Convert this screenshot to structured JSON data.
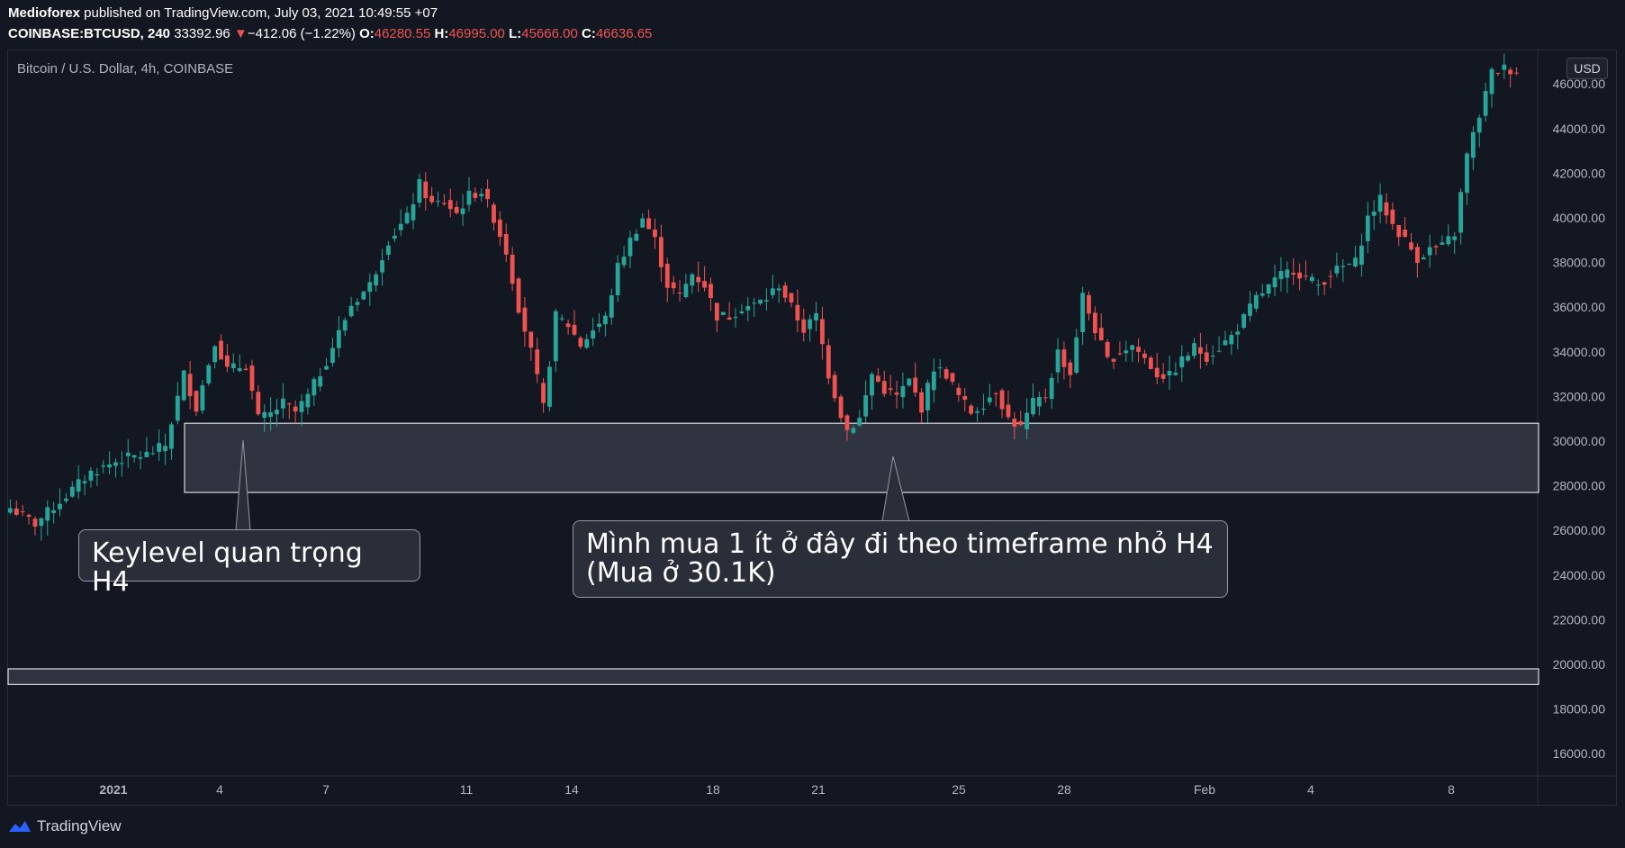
{
  "header": {
    "author": "Medioforex",
    "published": " published on TradingView.com, July 03, 2021 10:49:55 +07"
  },
  "quote": {
    "symbol": "COINBASE:BTCUSD, 240",
    "last": "33392.96",
    "arrow": "▼",
    "change": "−412.06 (−1.22%)",
    "o_label": "O:",
    "o": "46280.55",
    "h_label": "H:",
    "h": "46995.00",
    "l_label": "L:",
    "l": "45666.00",
    "c_label": "C:",
    "c": "46636.65"
  },
  "pane_title": "Bitcoin / U.S. Dollar, 4h, COINBASE",
  "currency": "USD",
  "callouts": {
    "keylevel": "Keylevel quan trọng H4",
    "buy_line1": "Mình mua 1 ít ở đây đi theo timeframe nhỏ H4",
    "buy_line2": "(Mua ở 30.1K)"
  },
  "branding": "TradingView",
  "colors": {
    "background": "#131722",
    "up": "#26a69a",
    "down": "#ef5350",
    "zone_fill": "#363a45",
    "zone_border": "#ffffff"
  },
  "chart_data": {
    "type": "candlestick",
    "title": "Bitcoin / U.S. Dollar, 4h, COINBASE",
    "ylim": [
      15000,
      47500
    ],
    "y_ticks": [
      16000,
      18000,
      20000,
      22000,
      24000,
      26000,
      28000,
      30000,
      32000,
      34000,
      36000,
      38000,
      40000,
      42000,
      44000,
      46000
    ],
    "x_ticks": [
      "2021",
      "4",
      "7",
      "11",
      "14",
      "18",
      "21",
      "25",
      "28",
      "Feb",
      "4",
      "8"
    ],
    "zones": [
      {
        "name": "key-zone",
        "y_top": 30800,
        "y_bottom": 27700
      },
      {
        "name": "lower-zone",
        "y_top": 19800,
        "y_bottom": 19100
      }
    ],
    "close_path": [
      [
        0,
        27000
      ],
      [
        4,
        26300
      ],
      [
        8,
        27300
      ],
      [
        13,
        28600
      ],
      [
        18,
        29200
      ],
      [
        22,
        29400
      ],
      [
        25,
        29800
      ],
      [
        28,
        33000
      ],
      [
        30,
        31500
      ],
      [
        33,
        34500
      ],
      [
        35,
        33200
      ],
      [
        38,
        33400
      ],
      [
        40,
        31000
      ],
      [
        42,
        31200
      ],
      [
        44,
        31700
      ],
      [
        46,
        31300
      ],
      [
        48,
        32000
      ],
      [
        51,
        33600
      ],
      [
        55,
        36100
      ],
      [
        58,
        37000
      ],
      [
        61,
        39000
      ],
      [
        64,
        40000
      ],
      [
        66,
        41500
      ],
      [
        68,
        40600
      ],
      [
        70,
        40700
      ],
      [
        72,
        40200
      ],
      [
        74,
        41000
      ],
      [
        76,
        41200
      ],
      [
        78,
        40000
      ],
      [
        80,
        38500
      ],
      [
        82,
        36000
      ],
      [
        84,
        34000
      ],
      [
        86,
        31500
      ],
      [
        88,
        35600
      ],
      [
        90,
        35200
      ],
      [
        92,
        34300
      ],
      [
        94,
        35000
      ],
      [
        96,
        35500
      ],
      [
        98,
        37800
      ],
      [
        100,
        39000
      ],
      [
        102,
        40000
      ],
      [
        104,
        39000
      ],
      [
        106,
        37000
      ],
      [
        108,
        36500
      ],
      [
        110,
        37500
      ],
      [
        112,
        37000
      ],
      [
        114,
        35600
      ],
      [
        116,
        35600
      ],
      [
        118,
        36000
      ],
      [
        120,
        36100
      ],
      [
        122,
        36400
      ],
      [
        124,
        37000
      ],
      [
        126,
        36000
      ],
      [
        128,
        35000
      ],
      [
        130,
        35600
      ],
      [
        132,
        33000
      ],
      [
        134,
        31200
      ],
      [
        135,
        30500
      ],
      [
        137,
        31000
      ],
      [
        139,
        33000
      ],
      [
        141,
        32300
      ],
      [
        143,
        32000
      ],
      [
        145,
        32700
      ],
      [
        147,
        31500
      ],
      [
        149,
        33300
      ],
      [
        151,
        33000
      ],
      [
        153,
        32000
      ],
      [
        155,
        31300
      ],
      [
        157,
        31700
      ],
      [
        159,
        32300
      ],
      [
        161,
        31000
      ],
      [
        163,
        30600
      ],
      [
        165,
        31700
      ],
      [
        167,
        32000
      ],
      [
        169,
        34000
      ],
      [
        171,
        33000
      ],
      [
        173,
        36500
      ],
      [
        175,
        35000
      ],
      [
        177,
        33600
      ],
      [
        179,
        34000
      ],
      [
        181,
        34300
      ],
      [
        183,
        33700
      ],
      [
        185,
        33000
      ],
      [
        187,
        32900
      ],
      [
        189,
        33600
      ],
      [
        191,
        34200
      ],
      [
        193,
        33800
      ],
      [
        195,
        34200
      ],
      [
        197,
        34700
      ],
      [
        199,
        35500
      ],
      [
        201,
        36400
      ],
      [
        203,
        36900
      ],
      [
        205,
        37400
      ],
      [
        207,
        37700
      ],
      [
        209,
        37300
      ],
      [
        211,
        37000
      ],
      [
        213,
        37500
      ],
      [
        215,
        37800
      ],
      [
        217,
        38000
      ],
      [
        219,
        40000
      ],
      [
        221,
        40800
      ],
      [
        223,
        39700
      ],
      [
        225,
        39000
      ],
      [
        227,
        38200
      ],
      [
        229,
        38600
      ],
      [
        231,
        38700
      ],
      [
        233,
        39300
      ],
      [
        235,
        42800
      ],
      [
        237,
        44600
      ],
      [
        239,
        46500
      ],
      [
        241,
        46700
      ],
      [
        243,
        46600
      ]
    ]
  }
}
